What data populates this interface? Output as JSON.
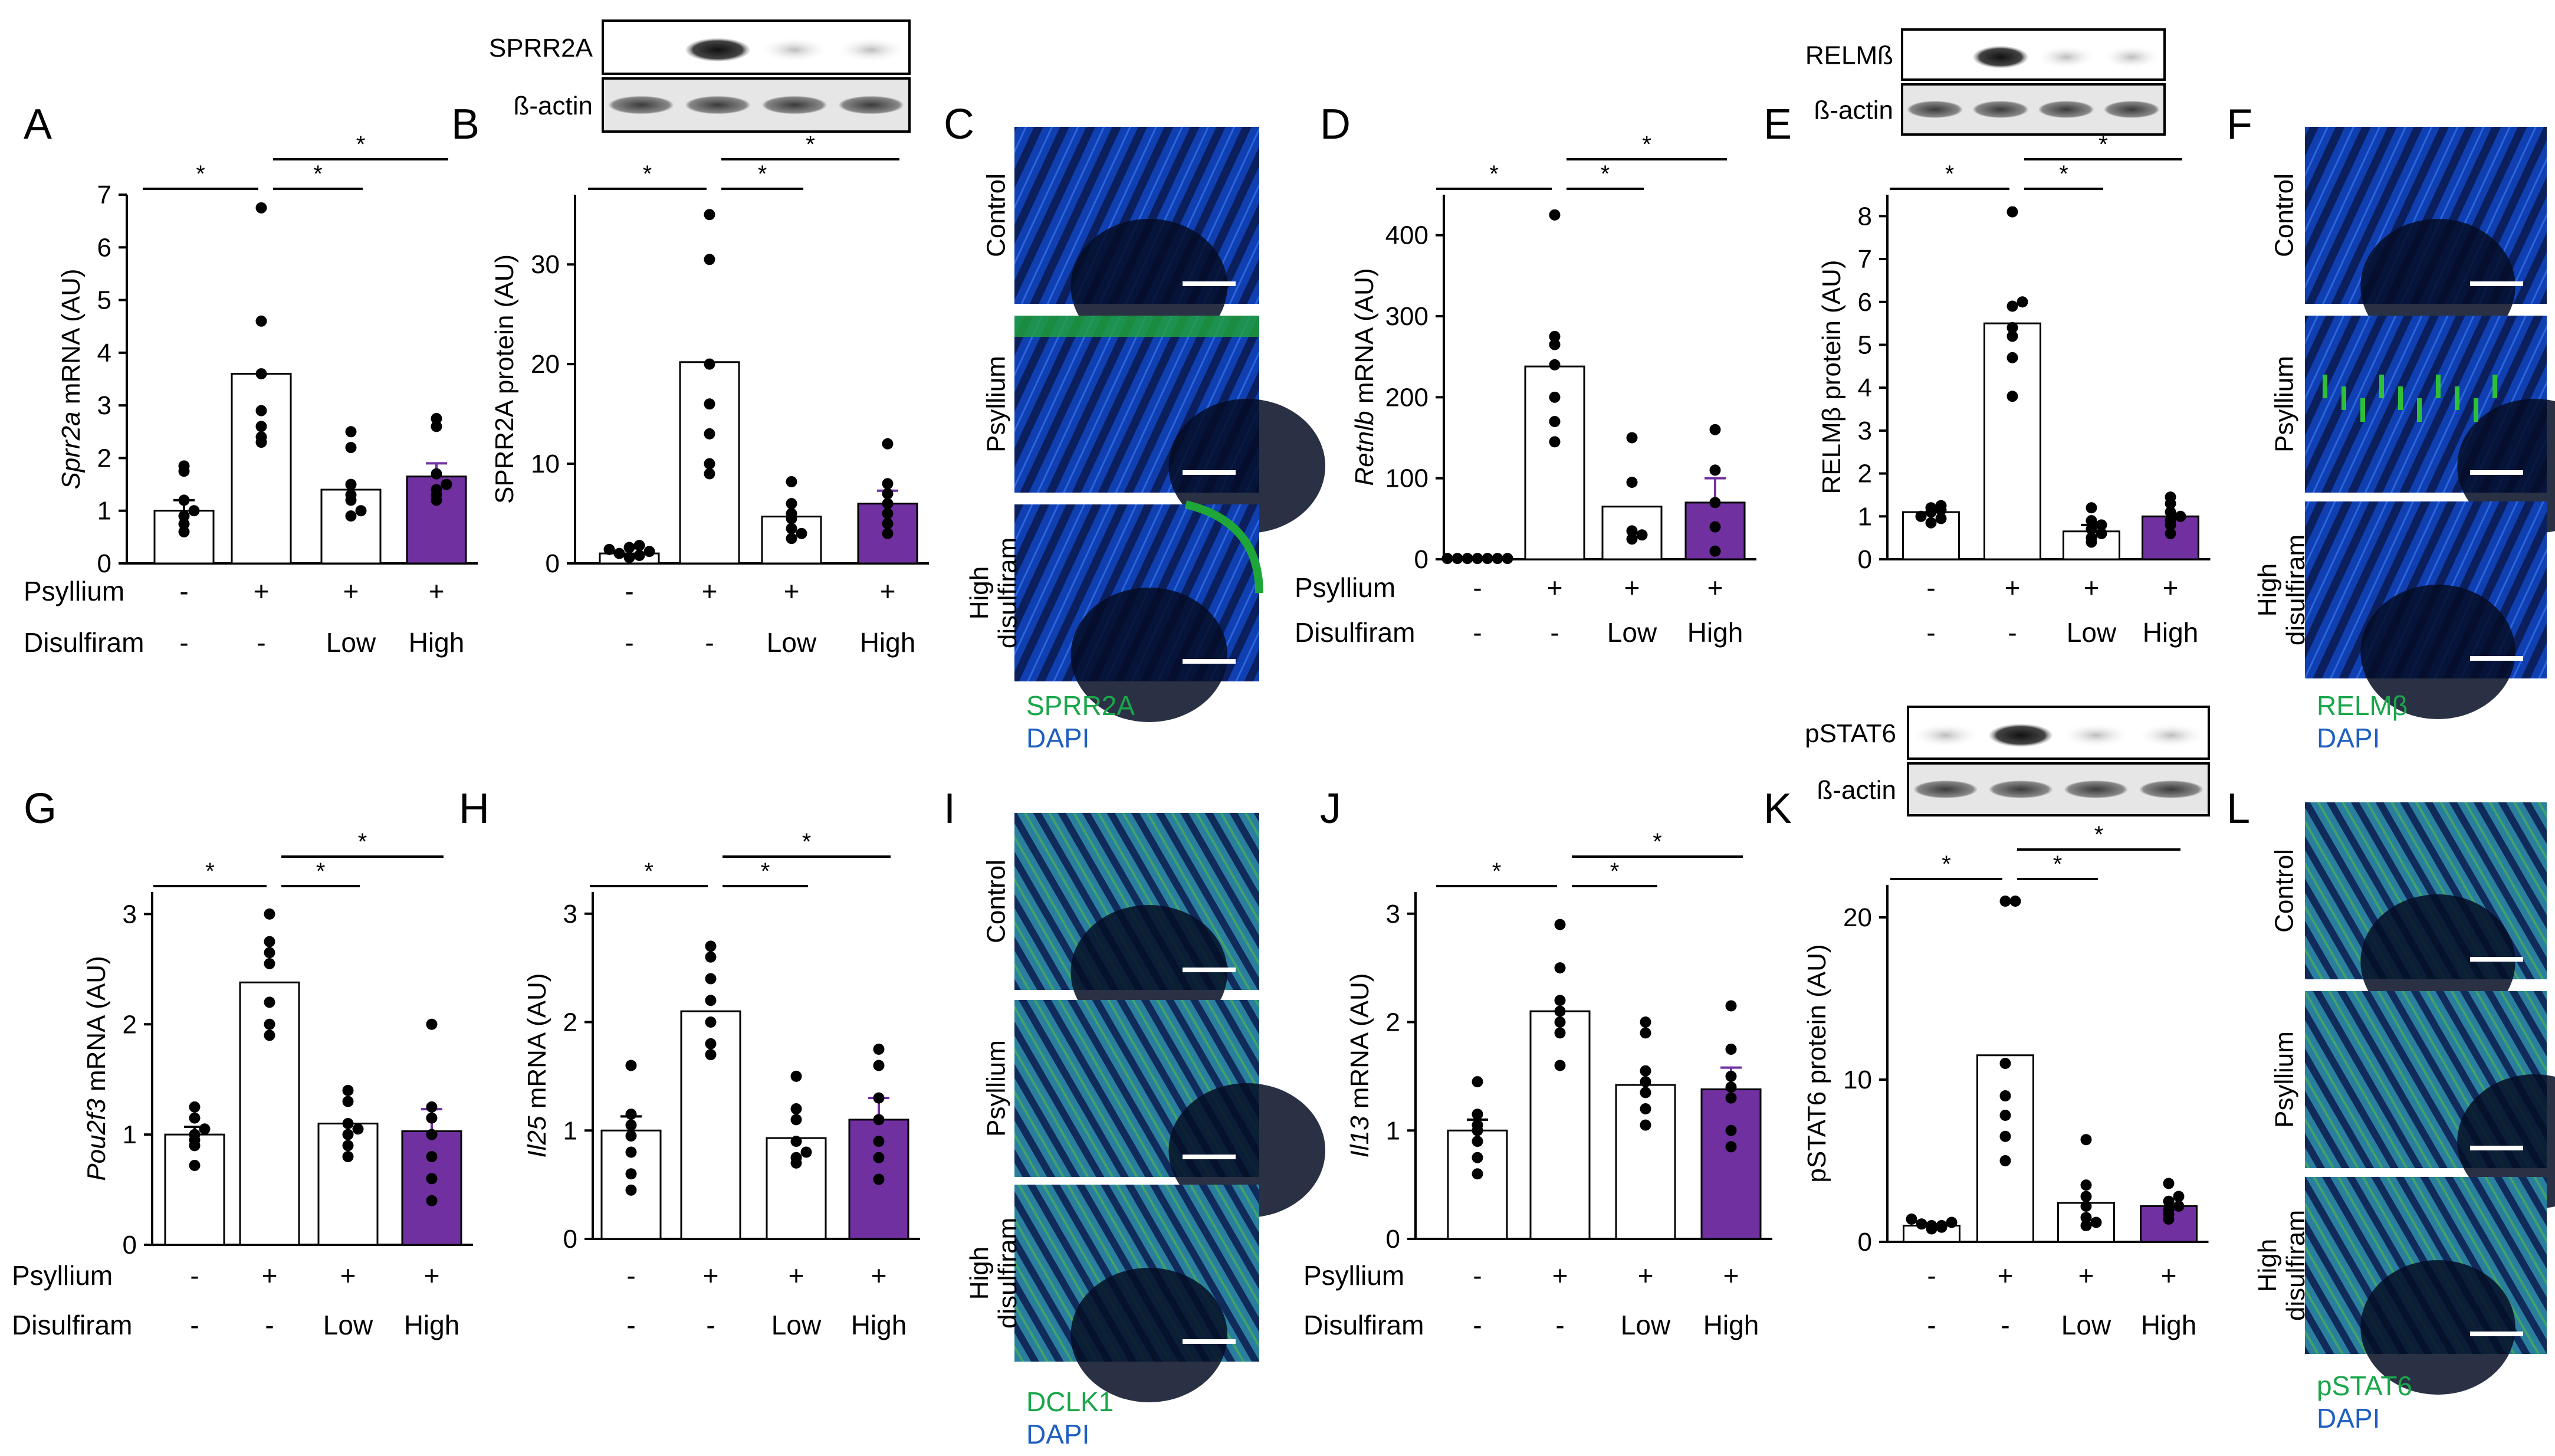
{
  "colors": {
    "purple": "#7030a0",
    "dot": "#000000",
    "green_label": "#1aa64a",
    "blue_label": "#1f5fc0",
    "micro_green": "#1fa638",
    "micro_blue": "#0a2a8a"
  },
  "row_labels": {
    "psyllium": "Psyllium",
    "disulfiram": "Disulfiram",
    "psyllium_values": [
      "-",
      "+",
      "+",
      "+"
    ],
    "disulfiram_values": [
      "-",
      "-",
      "Low",
      "High"
    ]
  },
  "significance": "*",
  "panels": {
    "A": "A",
    "B": "B",
    "C": "C",
    "D": "D",
    "E": "E",
    "F": "F",
    "G": "G",
    "H": "H",
    "I": "I",
    "J": "J",
    "K": "K",
    "L": "L"
  },
  "blots": {
    "sprr2a": {
      "label": "SPRR2A",
      "loading": "ß-actin"
    },
    "relmb": {
      "label": "RELMß",
      "loading": "ß-actin"
    },
    "pstat6": {
      "label": "pSTAT6",
      "loading": "ß-actin"
    }
  },
  "micrographs": {
    "C": {
      "rows": [
        "Control",
        "Psyllium",
        "High\ndisulfiram"
      ],
      "green": "SPRR2A",
      "blue": "DAPI"
    },
    "F": {
      "rows": [
        "Control",
        "Psyllium",
        "High\ndisulfiram"
      ],
      "green": "RELMβ",
      "blue": "DAPI"
    },
    "I": {
      "rows": [
        "Control",
        "Psyllium",
        "High\ndisulfiram"
      ],
      "green": "DCLK1",
      "blue": "DAPI"
    },
    "L": {
      "rows": [
        "Control",
        "Psyllium",
        "High\ndisulfiram"
      ],
      "green": "pSTAT6",
      "blue": "DAPI"
    }
  },
  "chart_data": [
    {
      "id": "A",
      "type": "bar",
      "ylabel_italic": "Sprr2a",
      "ylabel_rest": " mRNA (AU)",
      "categories": [
        "Control",
        "Psyllium",
        "Psyllium+Low disulfiram",
        "Psyllium+High disulfiram"
      ],
      "values": [
        1.0,
        3.6,
        1.4,
        1.65
      ],
      "errors": [
        0.2,
        0,
        0,
        0.25
      ],
      "points": [
        [
          0.6,
          0.75,
          0.9,
          1.0,
          1.2,
          1.75,
          1.85
        ],
        [
          2.3,
          2.4,
          2.6,
          2.9,
          3.6,
          4.6,
          6.75
        ],
        [
          0.9,
          1.0,
          1.2,
          1.3,
          1.5,
          2.2,
          2.5
        ],
        [
          1.2,
          1.3,
          1.4,
          1.5,
          1.7,
          2.6,
          2.75
        ]
      ],
      "ylim": [
        0,
        7
      ],
      "yticks": [
        0,
        1,
        2,
        3,
        4,
        5,
        6,
        7
      ],
      "comparisons": [
        [
          0,
          1
        ],
        [
          1,
          2
        ],
        [
          1,
          3
        ]
      ]
    },
    {
      "id": "B",
      "type": "bar",
      "ylabel_italic": "",
      "ylabel_rest": "SPRR2A protein (AU)",
      "categories": [
        "Control",
        "Psyllium",
        "Psyllium+Low disulfiram",
        "Psyllium+High disulfiram"
      ],
      "values": [
        1.0,
        20.2,
        4.7,
        6.0
      ],
      "errors": [
        0,
        0,
        0,
        1.3
      ],
      "points": [
        [
          0.6,
          0.8,
          1.0,
          1.2,
          1.4,
          1.6,
          1.8
        ],
        [
          9.0,
          10.0,
          13.0,
          16.0,
          20.0,
          30.5,
          35.0
        ],
        [
          2.5,
          3.0,
          3.5,
          4.5,
          5.0,
          6.0,
          8.2
        ],
        [
          3.0,
          4.0,
          5.0,
          6.0,
          7.0,
          8.0,
          12.0
        ]
      ],
      "ylim": [
        0,
        37
      ],
      "yticks": [
        0,
        10,
        20,
        30
      ],
      "comparisons": [
        [
          0,
          1
        ],
        [
          1,
          2
        ],
        [
          1,
          3
        ]
      ]
    },
    {
      "id": "D",
      "type": "bar",
      "ylabel_italic": "Retnlb",
      "ylabel_rest": " mRNA (AU)",
      "categories": [
        "Control",
        "Psyllium",
        "Psyllium+Low disulfiram",
        "Psyllium+High disulfiram"
      ],
      "values": [
        1.0,
        238,
        65,
        70
      ],
      "errors": [
        0,
        0,
        0,
        30
      ],
      "points": [
        [
          1,
          1,
          1,
          1,
          1,
          1,
          1
        ],
        [
          145,
          170,
          200,
          240,
          265,
          275,
          425
        ],
        [
          25,
          30,
          35,
          95,
          150
        ],
        [
          10,
          40,
          70,
          110,
          160
        ]
      ],
      "ylim": [
        0,
        450
      ],
      "yticks": [
        0,
        100,
        200,
        300,
        400
      ],
      "comparisons": [
        [
          0,
          1
        ],
        [
          1,
          2
        ],
        [
          1,
          3
        ]
      ]
    },
    {
      "id": "E",
      "type": "bar",
      "ylabel_italic": "",
      "ylabel_rest": "RELMβ protein (AU)",
      "categories": [
        "Control",
        "Psyllium",
        "Psyllium+Low disulfiram",
        "Psyllium+High disulfiram"
      ],
      "values": [
        1.1,
        5.5,
        0.65,
        1.0
      ],
      "errors": [
        0,
        0,
        0.15,
        0
      ],
      "points": [
        [
          0.85,
          0.95,
          1.0,
          1.1,
          1.15,
          1.2,
          1.25
        ],
        [
          3.8,
          4.7,
          5.2,
          5.4,
          5.9,
          6.0,
          8.1
        ],
        [
          0.4,
          0.5,
          0.6,
          0.7,
          0.8,
          0.9,
          1.2
        ],
        [
          0.6,
          0.8,
          0.9,
          1.0,
          1.1,
          1.3,
          1.45
        ]
      ],
      "ylim": [
        0,
        8.5
      ],
      "yticks": [
        0,
        1,
        2,
        3,
        4,
        5,
        6,
        7,
        8
      ],
      "comparisons": [
        [
          0,
          1
        ],
        [
          1,
          2
        ],
        [
          1,
          3
        ]
      ]
    },
    {
      "id": "G",
      "type": "bar",
      "ylabel_italic": "Pou2f3",
      "ylabel_rest": " mRNA (AU)",
      "categories": [
        "Control",
        "Psyllium",
        "Psyllium+Low disulfiram",
        "Psyllium+High disulfiram"
      ],
      "values": [
        1.0,
        2.38,
        1.1,
        1.03
      ],
      "errors": [
        0.07,
        0,
        0,
        0.2
      ],
      "points": [
        [
          0.72,
          0.9,
          0.95,
          1.0,
          1.05,
          1.15,
          1.25
        ],
        [
          1.9,
          2.0,
          2.2,
          2.55,
          2.65,
          2.75,
          3.0
        ],
        [
          0.8,
          0.9,
          1.0,
          1.05,
          1.1,
          1.3,
          1.4
        ],
        [
          0.4,
          0.6,
          0.8,
          1.0,
          1.15,
          1.25,
          2.0
        ]
      ],
      "ylim": [
        0,
        3.2
      ],
      "yticks": [
        0,
        1,
        2,
        3
      ],
      "comparisons": [
        [
          0,
          1
        ],
        [
          1,
          2
        ],
        [
          1,
          3
        ]
      ]
    },
    {
      "id": "H",
      "type": "bar",
      "ylabel_italic": "Il25",
      "ylabel_rest": " mRNA (AU)",
      "categories": [
        "Control",
        "Psyllium",
        "Psyllium+Low disulfiram",
        "Psyllium+High disulfiram"
      ],
      "values": [
        1.0,
        2.1,
        0.93,
        1.1
      ],
      "errors": [
        0.13,
        0,
        0,
        0.2
      ],
      "points": [
        [
          0.45,
          0.6,
          0.8,
          0.95,
          1.05,
          1.15,
          1.6
        ],
        [
          1.7,
          1.8,
          2.0,
          2.2,
          2.4,
          2.6,
          2.7
        ],
        [
          0.7,
          0.75,
          0.8,
          0.9,
          1.1,
          1.2,
          1.5
        ],
        [
          0.55,
          0.75,
          0.9,
          1.1,
          1.3,
          1.6,
          1.75
        ]
      ],
      "ylim": [
        0,
        3.2
      ],
      "yticks": [
        0,
        1,
        2,
        3
      ],
      "comparisons": [
        [
          0,
          1
        ],
        [
          1,
          2
        ],
        [
          1,
          3
        ]
      ]
    },
    {
      "id": "J",
      "type": "bar",
      "ylabel_italic": "Il13",
      "ylabel_rest": " mRNA (AU)",
      "categories": [
        "Control",
        "Psyllium",
        "Psyllium+Low disulfiram",
        "Psyllium+High disulfiram"
      ],
      "values": [
        1.0,
        2.1,
        1.42,
        1.38
      ],
      "errors": [
        0.1,
        0,
        0,
        0.2
      ],
      "points": [
        [
          0.6,
          0.75,
          0.9,
          1.0,
          1.05,
          1.15,
          1.45
        ],
        [
          1.6,
          1.9,
          2.0,
          2.1,
          2.2,
          2.5,
          2.9
        ],
        [
          1.05,
          1.2,
          1.35,
          1.45,
          1.55,
          1.9,
          2.0
        ],
        [
          0.85,
          1.0,
          1.3,
          1.4,
          1.5,
          1.75,
          2.15
        ]
      ],
      "ylim": [
        0,
        3.2
      ],
      "yticks": [
        0,
        1,
        2,
        3
      ],
      "comparisons": [
        [
          0,
          1
        ],
        [
          1,
          2
        ],
        [
          1,
          3
        ]
      ]
    },
    {
      "id": "K",
      "type": "bar",
      "ylabel_italic": "",
      "ylabel_rest": "pSTAT6 protein (AU)",
      "categories": [
        "Control",
        "Psyllium",
        "Psyllium+Low disulfiram",
        "Psyllium+High disulfiram"
      ],
      "values": [
        1.0,
        11.5,
        2.4,
        2.2
      ],
      "errors": [
        0,
        0,
        0,
        0
      ],
      "points": [
        [
          0.8,
          0.9,
          1.0,
          1.0,
          1.1,
          1.2,
          1.4
        ],
        [
          5.0,
          6.5,
          7.8,
          9.0,
          11.0,
          21.0,
          21.0
        ],
        [
          1.0,
          1.2,
          1.5,
          2.2,
          2.8,
          3.5,
          6.3
        ],
        [
          1.4,
          1.7,
          2.0,
          2.2,
          2.5,
          2.8,
          3.6
        ]
      ],
      "ylim": [
        0,
        22
      ],
      "yticks": [
        0,
        10,
        20
      ],
      "comparisons": [
        [
          0,
          1
        ],
        [
          1,
          2
        ],
        [
          1,
          3
        ]
      ]
    }
  ]
}
